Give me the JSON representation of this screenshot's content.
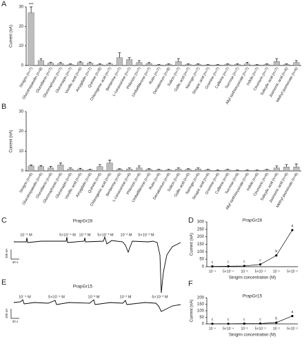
{
  "chart_data": [
    {
      "type": "bar",
      "panel": "A",
      "ylabel": "Current (nA)",
      "color": "#bdbdbd",
      "categories": [
        "Sinigrin (n=7)",
        "Glucotropaeolin (n=8)",
        "Glucoiberin (n=7)",
        "Glucoraphanin (n=7)",
        "Gluconapin (n=7)",
        "Vanillic acid (n=6)",
        "Amygdalin (n=7)",
        "Quinine (n=8)",
        "Chlorogenic acid (n=7)",
        "Berberine (n=7)",
        "L-canavanine (n=7)",
        "Phlorizin (n=7)",
        "Umbelliferone (n=7)",
        "Rutin (n=7)",
        "Denatonium (n=8)",
        "Salicin (n=7)",
        "Gallic acid (n=7)",
        "Naringin (n=7)",
        "Sinapic acid (n=7)",
        "Gramine (n=7)",
        "Caffeine (n=7)",
        "Sucrose (n=7)",
        "Allyl isothiocyanate (n=7)",
        "Indole (n=7)",
        "Coumarin (n=7)",
        "Salicylic acid (n=7)",
        "Jasmonic acid (n=6)",
        "Methyl jasmonate (n=6)"
      ],
      "values": [
        27,
        2.5,
        1.2,
        1,
        0.5,
        1.5,
        1.2,
        0.5,
        0.8,
        4,
        3,
        1.5,
        1,
        0.3,
        0.5,
        2,
        0.5,
        0.5,
        0.3,
        0.3,
        0.5,
        0.5,
        0.8,
        0.3,
        0.5,
        2,
        0.5,
        1.5
      ],
      "errors": [
        3,
        1,
        0.5,
        0.5,
        0.3,
        0.5,
        0.5,
        0.3,
        0.5,
        2.5,
        1,
        1,
        0.5,
        0.2,
        0.3,
        1.5,
        0.3,
        0.3,
        0.2,
        0.2,
        0.3,
        0.3,
        0.8,
        0.2,
        0.3,
        1.5,
        0.3,
        1
      ],
      "significance_marks": [
        "***",
        null,
        null,
        null,
        null,
        null,
        null,
        null,
        null,
        null,
        null,
        null,
        null,
        null,
        null,
        null,
        null,
        null,
        null,
        null,
        null,
        null,
        null,
        null,
        null,
        null,
        null,
        null
      ],
      "ylim": [
        0,
        30
      ],
      "yticks": [
        0,
        10,
        20,
        30
      ]
    },
    {
      "type": "bar",
      "panel": "B",
      "ylabel": "Current (nA)",
      "color": "#bdbdbd",
      "categories": [
        "Sinigrin (n=6)",
        "Glucotropaeolin (n=6)",
        "Glucoiberin (n=6)",
        "Glucoraphanin (n=6)",
        "Gluconapin (n=6)",
        "Vanillic acid (n=6)",
        "Amygdalin (n=6)",
        "Quinine (n=6)",
        "Chlorogenic acid (n=6)",
        "Berberine (n=6)",
        "L-canavanine (n=6)",
        "Phlorizin (n=6)",
        "Umbelliferone (n=6)",
        "Rutin (n=6)",
        "Denatonium (n=6)",
        "Salicin (n=6)",
        "Gallic acid (n=6)",
        "Naringin (n=6)",
        "Sinapic acid (n=6)",
        "Gramine (n=6)",
        "Caffeine (n=6)",
        "Sucrose (n=6)",
        "Allyl isothiocyanate (n=6)",
        "Indole (n=6)",
        "Coumarin (n=6)",
        "Salicylic acid (n=6)",
        "Jasmonic acid (n=6)",
        "Methyl jasmonate (n=6)"
      ],
      "values": [
        2.5,
        2.2,
        1.5,
        3,
        1,
        0.8,
        0.5,
        2.2,
        4,
        0.8,
        1,
        1.5,
        0.8,
        0.5,
        0.5,
        1,
        0.8,
        1,
        0.5,
        0.3,
        0.5,
        0.3,
        0.3,
        0.3,
        0.5,
        1.5,
        2,
        2
      ],
      "errors": [
        0.5,
        0.5,
        0.8,
        1,
        0.5,
        0.5,
        0.3,
        1,
        1.5,
        0.3,
        0.5,
        1,
        0.3,
        0.3,
        0.3,
        0.5,
        0.3,
        0.5,
        0.3,
        0.2,
        0.3,
        0.2,
        0.2,
        0.2,
        0.3,
        1,
        1.2,
        1.5
      ],
      "ylim": [
        0,
        30
      ],
      "yticks": [
        0,
        10,
        20,
        30
      ]
    },
    {
      "type": "line",
      "panel": "D",
      "title": "PrapGr28",
      "ylabel": "Current (nA)",
      "xlabel": "Sinigrin concentration (M)",
      "color": "#000000",
      "categories": [
        "10⁻⁴",
        "5×10⁻⁴",
        "10⁻³",
        "5×10⁻³",
        "10⁻²",
        "5×10⁻²"
      ],
      "values": [
        2,
        3,
        5,
        15,
        75,
        245
      ],
      "letters": [
        "c",
        "c",
        "c",
        "c",
        "b",
        "a"
      ],
      "ylim": [
        0,
        300
      ],
      "yticks": [
        0,
        50,
        100,
        150,
        200,
        250,
        300
      ]
    },
    {
      "type": "line",
      "panel": "F",
      "title": "PrapGr15",
      "ylabel": "Current (nA)",
      "xlabel": "Sinigrin concentration (M)",
      "color": "#000000",
      "categories": [
        "10⁻⁴",
        "5×10⁻⁴",
        "10⁻³",
        "5×10⁻³",
        "10⁻²",
        "5×10⁻²"
      ],
      "values": [
        1,
        1,
        2,
        3,
        10,
        60
      ],
      "letters": [
        "c",
        "c",
        "c",
        "c",
        "b",
        "a"
      ],
      "ylim": [
        0,
        200
      ],
      "yticks": [
        0,
        50,
        100,
        150,
        200
      ]
    }
  ],
  "traces": [
    {
      "panel": "C",
      "title": "PrapGr28",
      "labels": [
        "10⁻⁴ M",
        "5×10⁻⁴ M",
        "10⁻³ M",
        "5×10⁻³ M",
        "10⁻² M",
        "5×10⁻² M"
      ],
      "scale_current": "100 nA",
      "scale_time": "30 s"
    },
    {
      "panel": "E",
      "title": "PrapGr15",
      "labels": [
        "10⁻⁴ M",
        "5×10⁻⁴ M",
        "10⁻³ M",
        "10⁻² M",
        "5×10⁻² M"
      ],
      "scale_current": "100 nA",
      "scale_time": "30 s"
    }
  ]
}
